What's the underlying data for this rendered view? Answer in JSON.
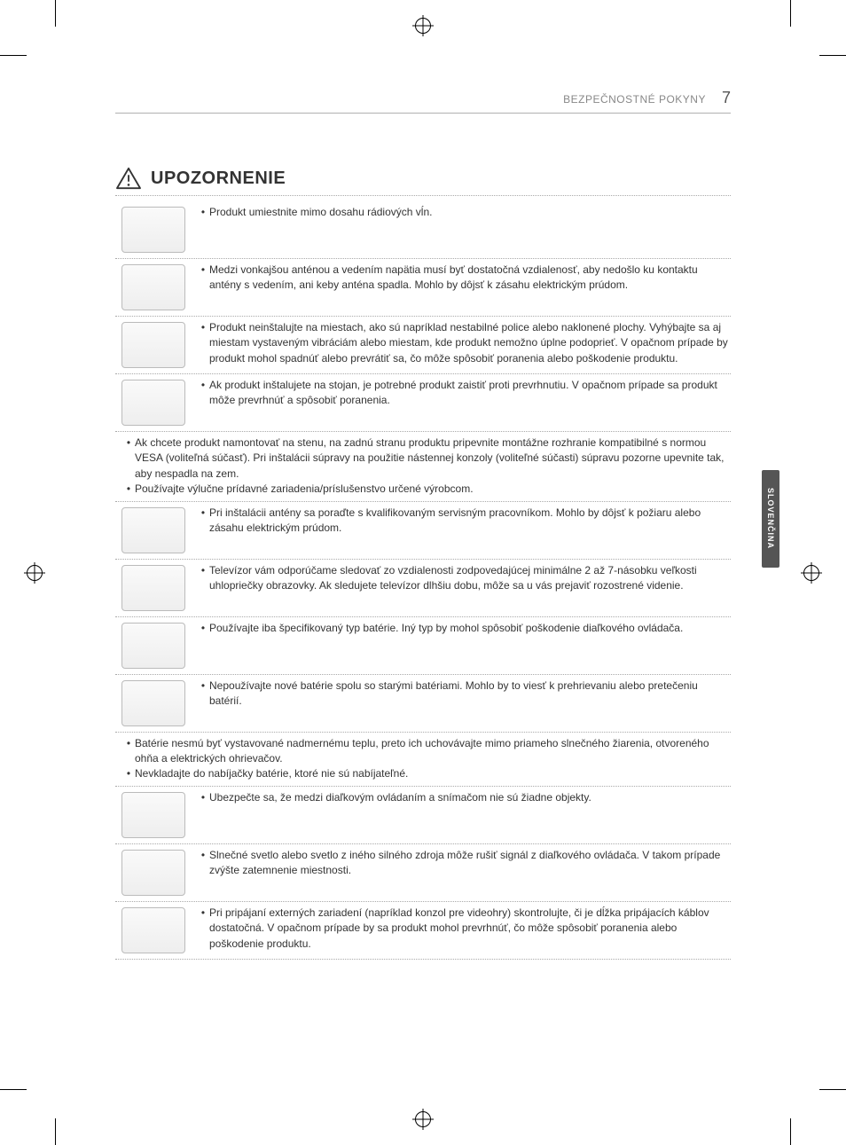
{
  "header": {
    "section_title": "BEZPEČNOSTNÉ POKYNY",
    "page_number": "7"
  },
  "side_tab": "SLOVENČINA",
  "warning_title": "UPOZORNENIE",
  "items": [
    {
      "icon": true,
      "bullets": [
        "Produkt umiestnite mimo dosahu rádiových vĺn."
      ]
    },
    {
      "icon": true,
      "bullets": [
        "Medzi vonkajšou anténou a vedením napätia musí byť dostatočná vzdialenosť, aby nedošlo ku kontaktu antény s vedením, ani keby anténa spadla. Mohlo by dôjsť k zásahu elektrickým prúdom."
      ]
    },
    {
      "icon": true,
      "bullets": [
        "Produkt neinštalujte na miestach, ako sú napríklad nestabilné police alebo naklonené plochy. Vyhýbajte sa aj miestam vystaveným vibráciám alebo miestam, kde produkt nemožno úplne podoprieť. V opačnom prípade by produkt mohol spadnúť alebo prevrátiť sa, čo môže spôsobiť poranenia alebo poškodenie produktu."
      ]
    },
    {
      "icon": true,
      "bullets": [
        "Ak produkt inštalujete na stojan, je potrebné produkt zaistiť proti prevrhnutiu. V opačnom prípade sa produkt môže prevrhnúť a spôsobiť poranenia."
      ]
    },
    {
      "icon": false,
      "bullets": [
        "Ak chcete produkt namontovať na stenu, na zadnú stranu produktu pripevnite montážne rozhranie kompatibilné s normou VESA (voliteľná súčasť). Pri inštalácii súpravy na použitie nástennej konzoly (voliteľné súčasti) súpravu pozorne upevnite tak, aby nespadla na zem.",
        "Používajte výlučne prídavné zariadenia/príslušenstvo určené výrobcom."
      ]
    },
    {
      "icon": true,
      "bullets": [
        "Pri inštalácii antény sa poraďte s kvalifikovaným servisným pracovníkom. Mohlo by dôjsť k požiaru alebo zásahu elektrickým prúdom."
      ]
    },
    {
      "icon": true,
      "bullets": [
        "Televízor vám odporúčame sledovať zo vzdialenosti zodpovedajúcej minimálne 2 až 7-násobku veľkosti uhlopriečky obrazovky. Ak sledujete televízor dlhšiu dobu, môže sa u vás prejaviť rozostrené videnie."
      ]
    },
    {
      "icon": true,
      "bullets": [
        "Používajte iba špecifikovaný typ batérie. Iný typ by mohol spôsobiť poškodenie diaľkového ovládača."
      ]
    },
    {
      "icon": true,
      "bullets": [
        "Nepoužívajte nové batérie spolu so starými batériami. Mohlo by to viesť k prehrievaniu alebo pretečeniu batérií."
      ]
    },
    {
      "icon": false,
      "bullets": [
        "Batérie nesmú byť vystavované nadmernému teplu, preto ich uchovávajte mimo priameho slnečného žiarenia, otvoreného ohňa a elektrických ohrievačov.",
        "Nevkladajte do nabíjačky batérie, ktoré nie sú nabíjateľné."
      ]
    },
    {
      "icon": true,
      "bullets": [
        "Ubezpečte sa, že medzi diaľkovým ovládaním a snímačom nie sú žiadne objekty."
      ]
    },
    {
      "icon": true,
      "bullets": [
        "Slnečné svetlo alebo svetlo z iného silného zdroja môže rušiť signál z diaľkového ovládača. V takom prípade zvýšte zatemnenie miestnosti."
      ]
    },
    {
      "icon": true,
      "bullets": [
        "Pri pripájaní externých zariadení (napríklad konzol pre videohry) skontrolujte, či je dĺžka pripájacích káblov dostatočná. V opačnom prípade by sa produkt mohol prevrhnúť, čo môže spôsobiť poranenia alebo poškodenie produktu."
      ]
    }
  ]
}
